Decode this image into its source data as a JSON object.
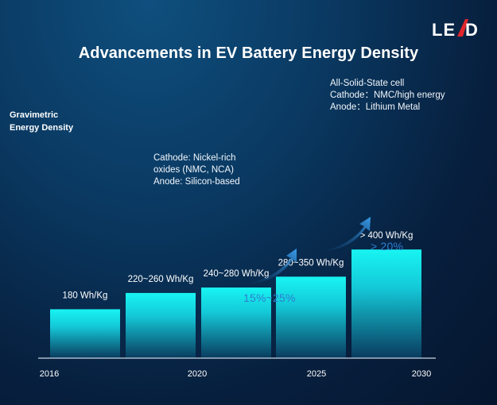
{
  "logo": {
    "text": "LEAD",
    "alt": "LEAD logo"
  },
  "title": "Advancements in EV Battery Energy Density",
  "ylabel_lines": [
    "Gravimetric",
    "Energy Density"
  ],
  "notes": {
    "silicon": [
      "Cathode: Nickel-rich",
      "oxides (NMC, NCA)",
      "Anode: Silicon-based"
    ],
    "solid_state": [
      "All-Solid-State cell",
      "Cathode：NMC/high energy",
      "Anode：Lithium Metal"
    ]
  },
  "growth_labels": [
    "15%~25%",
    "> 20%"
  ],
  "colors": {
    "bar_top": "#18f4f2",
    "bar_bottom": "#0a3b5e",
    "axis": "#c9d6e4",
    "arrow": "#2a83d4",
    "growth_text": "#2b7fd0"
  },
  "chart_data": {
    "type": "bar",
    "title": "Advancements in EV Battery Energy Density",
    "ylabel": "Gravimetric Energy Density",
    "xlabel": "",
    "x_ticks": [
      "2016",
      "2020",
      "2025",
      "2030"
    ],
    "y_axis_shown": false,
    "grid": false,
    "legend": "none",
    "series": [
      {
        "values": [
          180,
          240,
          260,
          300,
          400
        ],
        "labels": [
          "180 Wh/Kg",
          "220~260 Wh/Kg",
          "240~280 Wh/Kg",
          "280~350 Wh/Kg",
          "> 400 Wh/Kg"
        ]
      }
    ],
    "ylim": [
      0,
      420
    ]
  }
}
